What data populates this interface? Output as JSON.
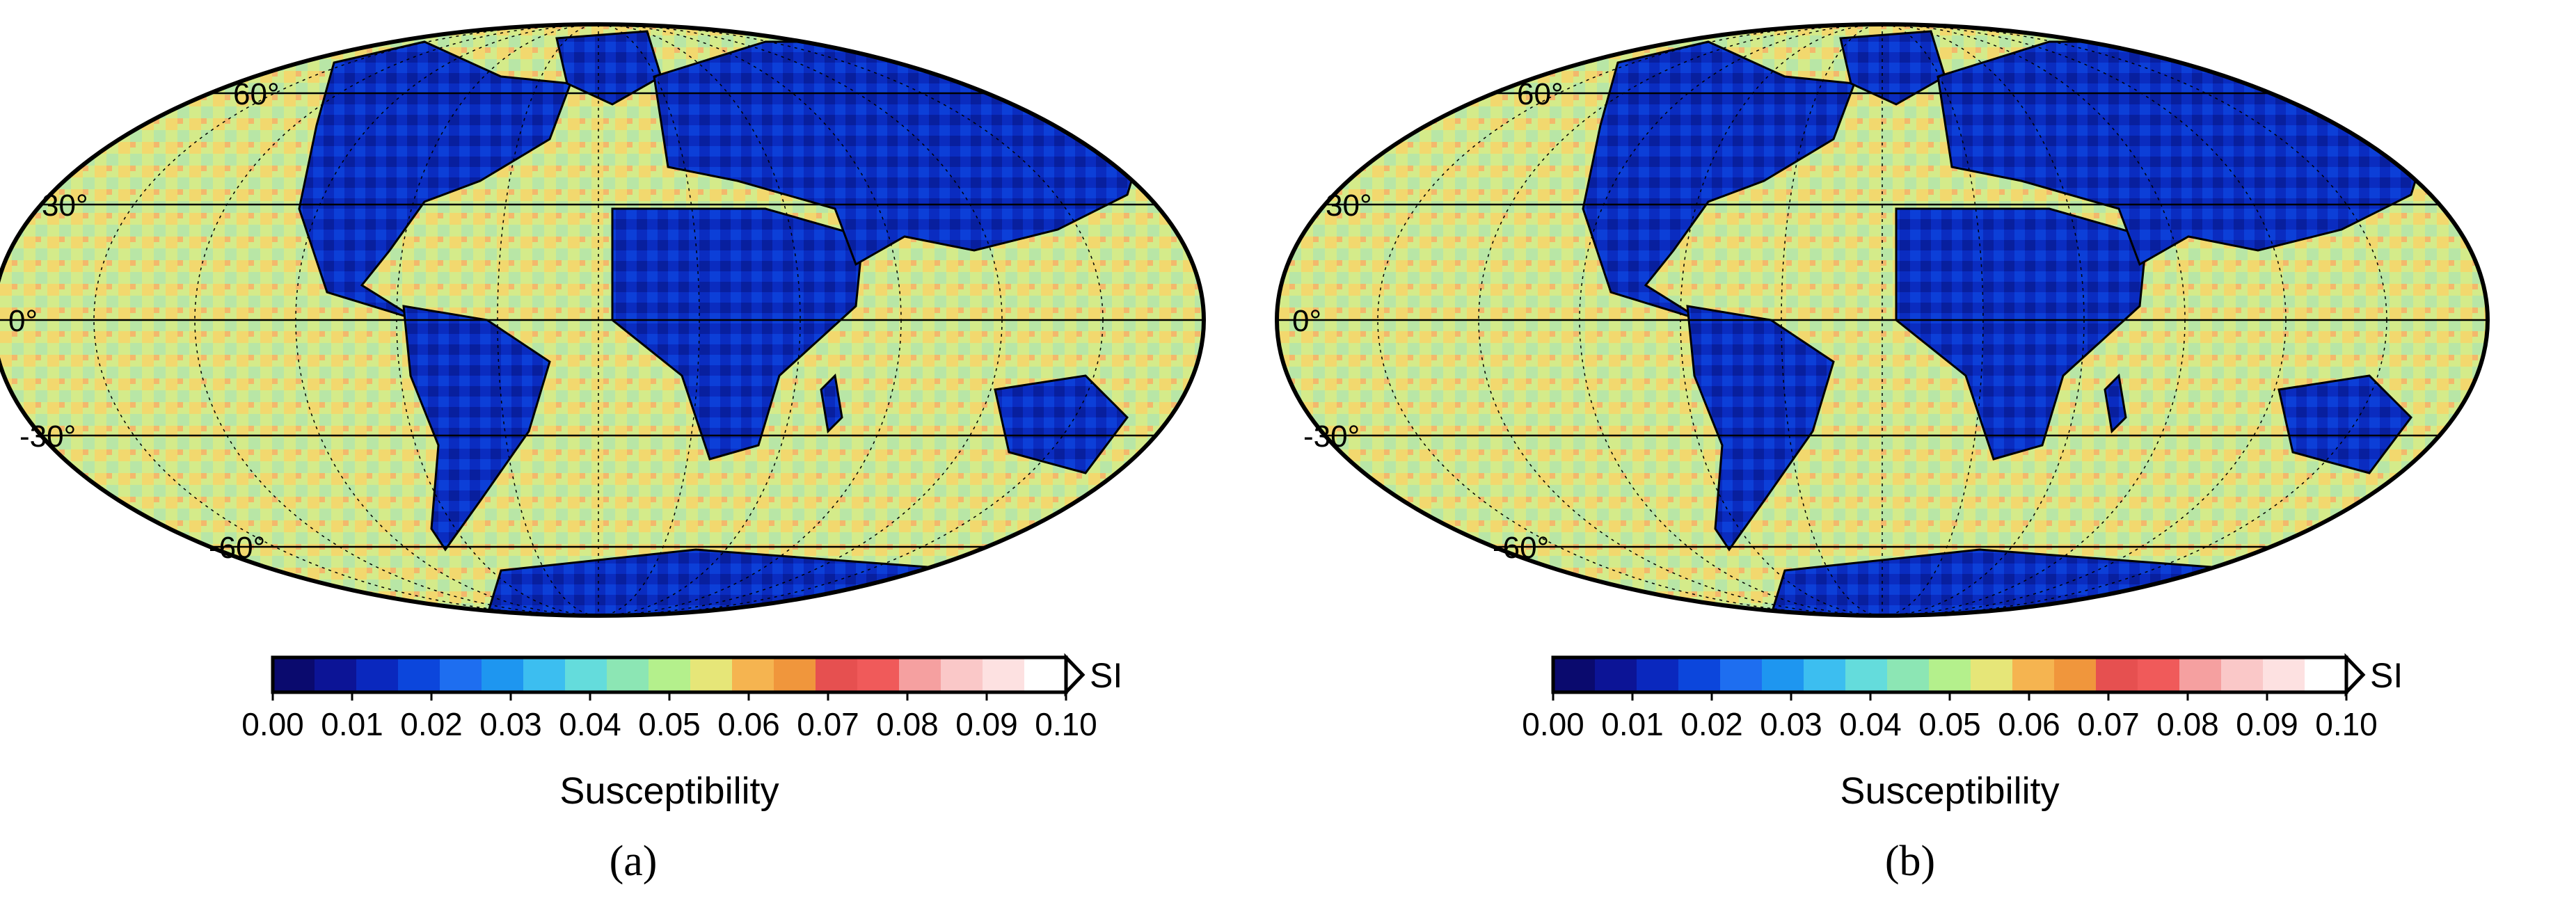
{
  "panels": [
    {
      "caption": "(a)",
      "latitude_labels": [
        "60°",
        "30°",
        "0°",
        "-30°",
        "-60°"
      ],
      "colorbar": {
        "title": "Susceptibility",
        "unit": "SI",
        "ticks": [
          "0.00",
          "0.01",
          "0.02",
          "0.03",
          "0.04",
          "0.05",
          "0.06",
          "0.07",
          "0.08",
          "0.09",
          "0.10"
        ]
      }
    },
    {
      "caption": "(b)",
      "latitude_labels": [
        "60°",
        "30°",
        "0°",
        "-30°",
        "-60°"
      ],
      "colorbar": {
        "title": "Susceptibility",
        "unit": "SI",
        "ticks": [
          "0.00",
          "0.01",
          "0.02",
          "0.03",
          "0.04",
          "0.05",
          "0.06",
          "0.07",
          "0.08",
          "0.09",
          "0.10"
        ]
      }
    }
  ],
  "map": {
    "projection": "Mollweide",
    "variable": "Susceptibility",
    "unit": "SI",
    "range": [
      0.0,
      0.1
    ],
    "color_scale": [
      "#0a0a6e",
      "#0c1496",
      "#0a28be",
      "#0c46dc",
      "#1e6ef0",
      "#1e96f0",
      "#3cbef0",
      "#64dcdc",
      "#8ce6b4",
      "#b4f08c",
      "#e6e678",
      "#f5b450",
      "#f0963c",
      "#e65050",
      "#f05a5a",
      "#f5a0a0",
      "#fac8c8",
      "#fde1e1",
      "#ffffff"
    ],
    "land_color": "#0c46dc",
    "ocean_color": "#d8ec86",
    "coastline_color": "#000000"
  }
}
